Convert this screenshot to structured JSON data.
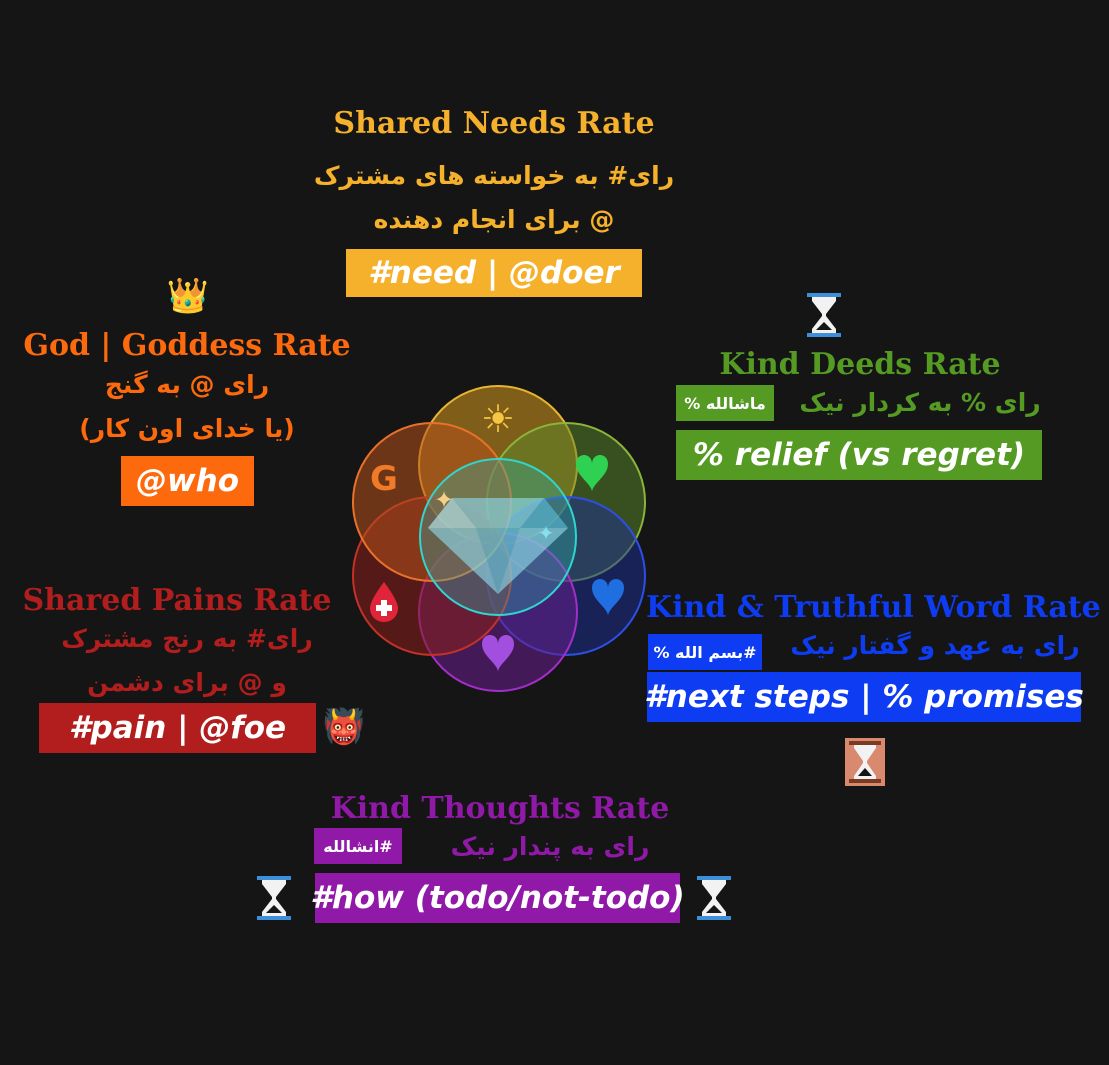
{
  "colors": {
    "background": "#151515",
    "needs": "#f5b02c",
    "god": "#fd6a0e",
    "deeds": "#559a23",
    "pains": "#b11e1d",
    "word": "#0e3cf2",
    "thoughts": "#9019a8",
    "center": "#27d4c9"
  },
  "needs": {
    "title": "Shared Needs Rate",
    "fa_line1": "رای# به خواسته های مشترک",
    "fa_line2": "@ برای انجام دهنده",
    "tag": "#need  |  @doer"
  },
  "god": {
    "icon": "crown-icon",
    "icon_glyph": "👑",
    "title": "God | Goddess Rate",
    "fa_line1": "رای @ به گنج",
    "fa_line2": "(یا خدای اون کار)",
    "tag": "@who"
  },
  "deeds": {
    "title": "Kind Deeds Rate",
    "badge": "ماشالله %",
    "fa_line": "رای % به کردار نیک",
    "tag": "% relief (vs regret)"
  },
  "pains": {
    "title": "Shared Pains Rate",
    "fa_line1": "رای# به رنج مشترک",
    "fa_line2": "و @ برای دشمن",
    "tag": "#pain   |   @foe",
    "icon": "ogre-icon",
    "icon_glyph": "👹"
  },
  "word": {
    "title": "Kind & Truthful Word Rate",
    "badge": "#بسم الله %",
    "fa_line": "رای به عهد و گفتار نیک",
    "tag": "#next steps  |  % promises"
  },
  "thoughts": {
    "title": "Kind Thoughts Rate",
    "badge": "#انشالله",
    "fa_line": "رای به پندار نیک",
    "tag": "#how (todo/not-todo)"
  },
  "diagram": {
    "petal_top_icon": "☀",
    "petal_topleft_letter": "G",
    "petal_topright_icon": "green-heart-icon",
    "petal_right_icon": "blue-heart-icon",
    "petal_bottom_icon": "purple-heart-icon",
    "petal_left_icon": "blood-drop-icon"
  }
}
